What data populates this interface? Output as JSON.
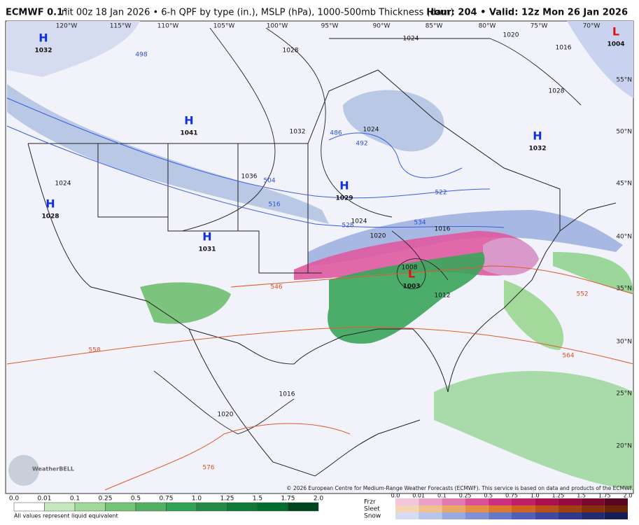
{
  "header": {
    "title": "ECMWF 0.1°",
    "subtitle": "Init 00z 18 Jan 2026 • 6-h QPF by type (in.), MSLP (hPa), 1000-500mb Thickness (dam)",
    "valid": "Hour: 204 • Valid: 12z Mon 26 Jan 2026"
  },
  "map": {
    "longitudes": [
      "120°W",
      "115°W",
      "110°W",
      "105°W",
      "100°W",
      "95°W",
      "90°W",
      "85°W",
      "80°W",
      "75°W",
      "70°W"
    ],
    "latitudes": [
      "55°N",
      "50°N",
      "45°N",
      "40°N",
      "35°N",
      "30°N",
      "25°N",
      "20°N"
    ],
    "pressure_centers": [
      {
        "symbol": "H",
        "value": "1032"
      },
      {
        "symbol": "H",
        "value": "1041"
      },
      {
        "symbol": "H",
        "value": "1028"
      },
      {
        "symbol": "H",
        "value": "1031"
      },
      {
        "symbol": "H",
        "value": "1029"
      },
      {
        "symbol": "H",
        "value": "1032"
      },
      {
        "symbol": "L",
        "value": "1003"
      },
      {
        "symbol": "L",
        "value": "1004"
      }
    ],
    "isobar_labels": [
      "1024",
      "1028",
      "1032",
      "1024",
      "1036",
      "1024",
      "1020",
      "1016",
      "1028",
      "1024",
      "1020",
      "1016",
      "1008",
      "1012",
      "1016",
      "1020"
    ],
    "thickness_labels": [
      "498",
      "504",
      "516",
      "492",
      "486",
      "522",
      "528",
      "534",
      "546",
      "552",
      "558",
      "564",
      "576"
    ]
  },
  "copyright": "© 2026 European Centre for Medium-Range Weather Forecasts (ECMWF). This service is based on data and products of the ECMWF.",
  "logo": "WeatherBELL",
  "legend": {
    "rain_scale": [
      "0.0",
      "0.01",
      "0.1",
      "0.25",
      "0.5",
      "0.75",
      "1.0",
      "1.25",
      "1.5",
      "1.75",
      "2.0"
    ],
    "note": "All values represent liquid equivalent",
    "types": [
      "Frzr",
      "Sleet",
      "Snow"
    ],
    "mixed_scale": [
      "0.0",
      "0.01",
      "0.1",
      "0.25",
      "0.5",
      "0.75",
      "1.0",
      "1.25",
      "1.5",
      "1.75",
      "2.0"
    ]
  }
}
